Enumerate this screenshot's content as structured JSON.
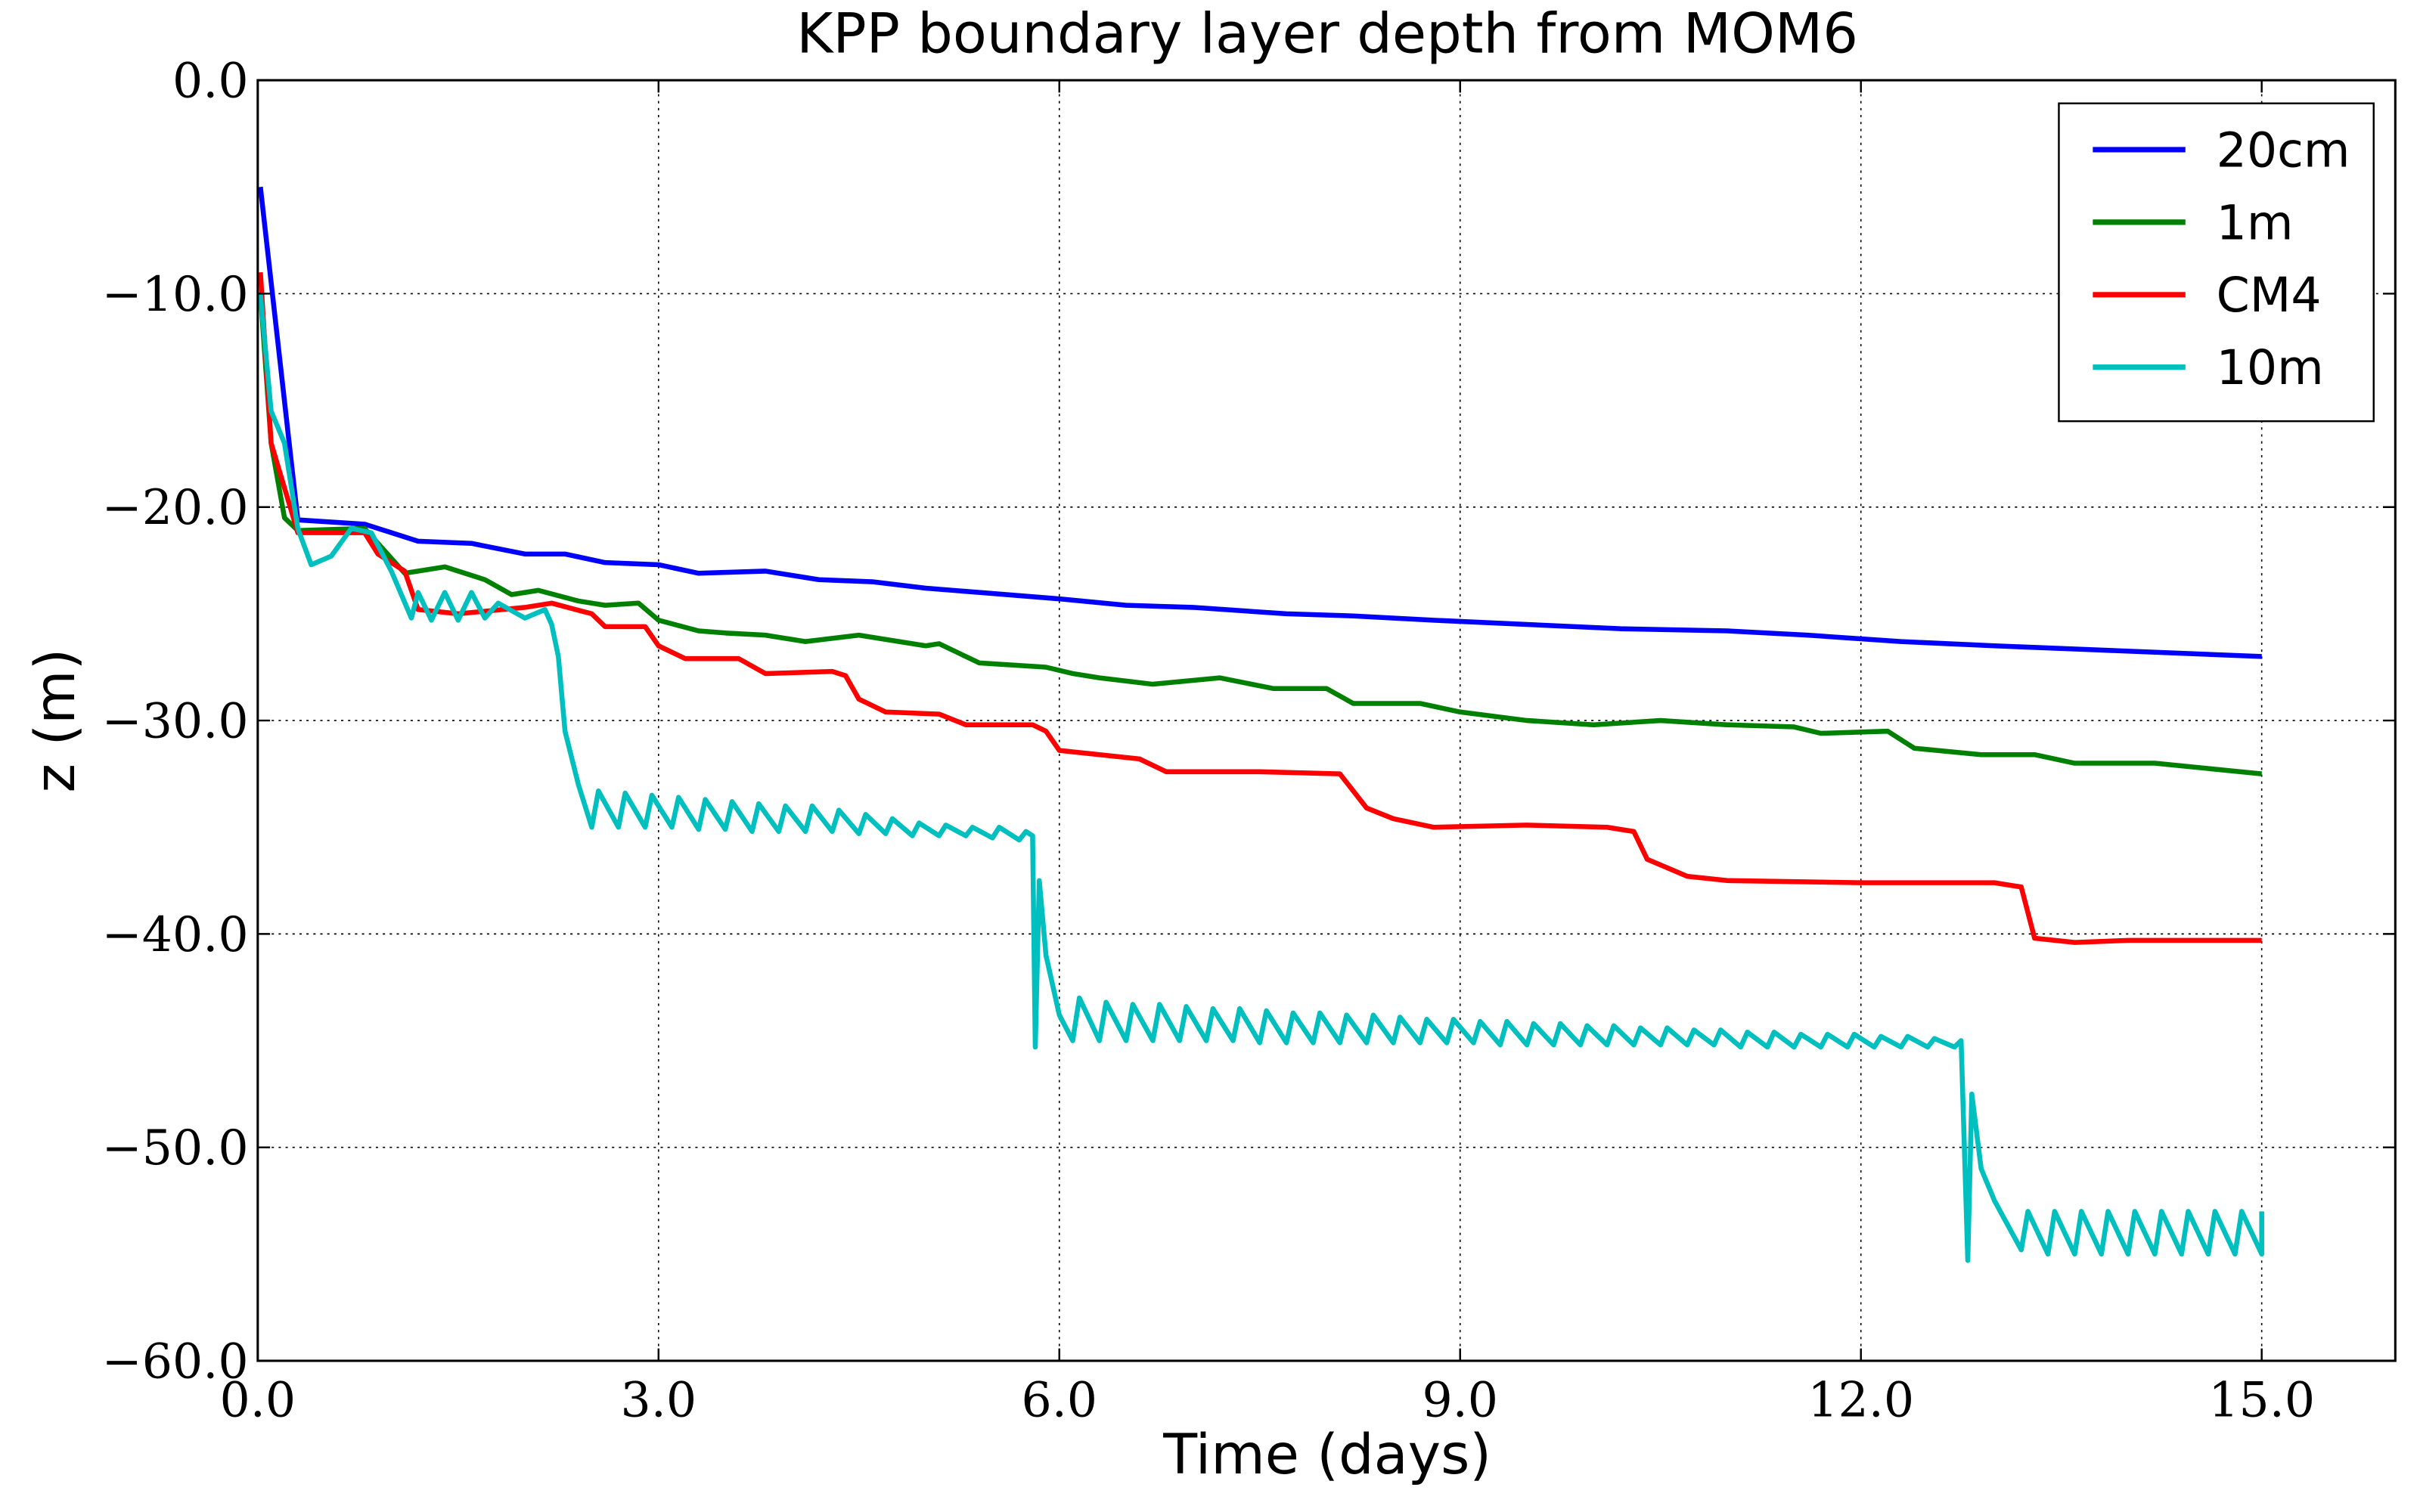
{
  "chart_data": {
    "type": "line",
    "title": "KPP boundary layer depth from MOM6",
    "x_label": "Time (days)",
    "y_label": "z (m)",
    "xlim": [
      0,
      16
    ],
    "ylim": [
      -60,
      0
    ],
    "xticks": [
      {
        "value": 0,
        "label": "0.0"
      },
      {
        "value": 3,
        "label": "3.0"
      },
      {
        "value": 6,
        "label": "6.0"
      },
      {
        "value": 9,
        "label": "9.0"
      },
      {
        "value": 12,
        "label": "12.0"
      },
      {
        "value": 15,
        "label": "15.0"
      }
    ],
    "yticks": [
      {
        "value": -60,
        "label": "−60.0"
      },
      {
        "value": -50,
        "label": "−50.0"
      },
      {
        "value": -40,
        "label": "−40.0"
      },
      {
        "value": -30,
        "label": "−30.0"
      },
      {
        "value": -20,
        "label": "−20.0"
      },
      {
        "value": -10,
        "label": "−10.0"
      },
      {
        "value": 0,
        "label": "0.0"
      }
    ],
    "grid": true,
    "legend": "upper right",
    "series": [
      {
        "name": "20cm",
        "color": "#0000ff",
        "x": [
          0.02,
          0.3,
          0.8,
          1.2,
          1.6,
          2.0,
          2.3,
          2.6,
          3.0,
          3.3,
          3.8,
          4.2,
          4.6,
          5.0,
          5.4,
          6.0,
          6.5,
          7.0,
          7.7,
          8.2,
          8.8,
          9.5,
          10.2,
          11.0,
          11.6,
          12.3,
          13.0,
          13.8,
          15.0
        ],
        "values": [
          -5,
          -20.6,
          -20.8,
          -21.6,
          -21.7,
          -22.2,
          -22.2,
          -22.6,
          -22.7,
          -23.1,
          -23.0,
          -23.4,
          -23.5,
          -23.8,
          -24.0,
          -24.3,
          -24.6,
          -24.7,
          -25.0,
          -25.1,
          -25.3,
          -25.5,
          -25.7,
          -25.8,
          -26.0,
          -26.3,
          -26.5,
          -26.7,
          -27.0
        ]
      },
      {
        "name": "1m",
        "color": "#008000",
        "x": [
          0.02,
          0.1,
          0.2,
          0.3,
          0.8,
          1.1,
          1.4,
          1.7,
          1.9,
          2.1,
          2.4,
          2.6,
          2.85,
          3.0,
          3.3,
          3.5,
          3.8,
          4.1,
          4.5,
          5.0,
          5.1,
          5.4,
          5.9,
          6.1,
          6.3,
          6.7,
          7.2,
          7.6,
          8.0,
          8.2,
          8.7,
          9.0,
          9.5,
          10.0,
          10.5,
          11.0,
          11.5,
          11.7,
          12.2,
          12.4,
          12.9,
          13.3,
          13.6,
          14.2,
          15.0
        ],
        "values": [
          -10,
          -17,
          -20.5,
          -21.1,
          -21.0,
          -23.1,
          -22.8,
          -23.4,
          -24.1,
          -23.9,
          -24.4,
          -24.6,
          -24.5,
          -25.3,
          -25.8,
          -25.9,
          -26.0,
          -26.3,
          -26.0,
          -26.5,
          -26.4,
          -27.3,
          -27.5,
          -27.8,
          -28.0,
          -28.3,
          -28.0,
          -28.5,
          -28.5,
          -29.2,
          -29.2,
          -29.6,
          -30.0,
          -30.2,
          -30.0,
          -30.2,
          -30.3,
          -30.6,
          -30.5,
          -31.3,
          -31.6,
          -31.6,
          -32.0,
          -32.0,
          -32.5
        ]
      },
      {
        "name": "CM4",
        "color": "#ff0000",
        "x": [
          0.02,
          0.1,
          0.3,
          0.8,
          0.9,
          1.1,
          1.2,
          1.5,
          2.0,
          2.2,
          2.5,
          2.6,
          2.9,
          3.0,
          3.2,
          3.6,
          3.8,
          4.3,
          4.4,
          4.5,
          4.7,
          5.1,
          5.3,
          5.8,
          5.9,
          6.0,
          6.3,
          6.6,
          6.8,
          7.5,
          8.1,
          8.3,
          8.5,
          8.8,
          9.5,
          10.1,
          10.3,
          10.4,
          10.7,
          11.0,
          12.0,
          13.0,
          13.2,
          13.3,
          13.6,
          14.0,
          15.0
        ],
        "values": [
          -9,
          -17,
          -21.2,
          -21.2,
          -22.2,
          -23.0,
          -24.8,
          -25.0,
          -24.7,
          -24.5,
          -25.0,
          -25.6,
          -25.6,
          -26.5,
          -27.1,
          -27.1,
          -27.8,
          -27.7,
          -27.9,
          -29.0,
          -29.6,
          -29.7,
          -30.2,
          -30.2,
          -30.5,
          -31.4,
          -31.6,
          -31.8,
          -32.4,
          -32.4,
          -32.5,
          -34.1,
          -34.6,
          -35.0,
          -34.9,
          -35.0,
          -35.2,
          -36.5,
          -37.3,
          -37.5,
          -37.6,
          -37.6,
          -37.8,
          -40.2,
          -40.4,
          -40.3,
          -40.3
        ]
      },
      {
        "name": "10m",
        "color": "#00bfbf",
        "x": [
          0.02,
          0.1,
          0.2,
          0.3,
          0.4,
          0.55,
          0.7,
          0.85,
          1.0,
          1.15,
          1.2,
          1.3,
          1.4,
          1.5,
          1.6,
          1.7,
          1.8,
          2.0,
          2.15,
          2.2,
          2.25,
          2.3,
          2.4,
          2.5,
          2.55,
          2.7,
          2.75,
          2.9,
          2.95,
          3.1,
          3.15,
          3.3,
          3.35,
          3.5,
          3.55,
          3.7,
          3.75,
          3.9,
          3.95,
          4.1,
          4.15,
          4.3,
          4.35,
          4.5,
          4.55,
          4.7,
          4.75,
          4.9,
          4.95,
          5.1,
          5.15,
          5.3,
          5.35,
          5.5,
          5.55,
          5.7,
          5.75,
          5.8,
          5.82,
          5.85,
          5.9,
          6.0,
          6.1,
          6.15,
          6.3,
          6.35,
          6.5,
          6.55,
          6.7,
          6.75,
          6.9,
          6.95,
          7.1,
          7.15,
          7.3,
          7.35,
          7.5,
          7.55,
          7.7,
          7.75,
          7.9,
          7.95,
          8.1,
          8.15,
          8.3,
          8.35,
          8.5,
          8.55,
          8.7,
          8.75,
          8.9,
          8.95,
          9.1,
          9.15,
          9.3,
          9.35,
          9.5,
          9.55,
          9.7,
          9.75,
          9.9,
          9.95,
          10.1,
          10.15,
          10.3,
          10.35,
          10.5,
          10.55,
          10.7,
          10.75,
          10.9,
          10.95,
          11.1,
          11.15,
          11.3,
          11.35,
          11.5,
          11.55,
          11.7,
          11.75,
          11.9,
          11.95,
          12.1,
          12.15,
          12.3,
          12.35,
          12.5,
          12.55,
          12.7,
          12.75,
          12.8,
          12.83,
          12.9,
          13.0,
          13.2,
          13.25,
          13.4,
          13.45,
          13.6,
          13.65,
          13.8,
          13.85,
          14.0,
          14.05,
          14.2,
          14.25,
          14.4,
          14.45,
          14.6,
          14.65,
          14.8,
          14.85,
          15.0,
          15.0
        ],
        "values": [
          -10,
          -15.5,
          -17,
          -21,
          -22.7,
          -22.3,
          -21,
          -21.2,
          -23,
          -25.2,
          -24,
          -25.3,
          -24,
          -25.3,
          -24,
          -25.2,
          -24.5,
          -25.2,
          -24.8,
          -25.5,
          -27,
          -30.5,
          -33,
          -35.0,
          -33.3,
          -35.0,
          -33.4,
          -35.0,
          -33.5,
          -35.0,
          -33.6,
          -35.1,
          -33.7,
          -35.1,
          -33.8,
          -35.2,
          -33.9,
          -35.2,
          -34.0,
          -35.2,
          -34.0,
          -35.2,
          -34.2,
          -35.3,
          -34.4,
          -35.3,
          -34.6,
          -35.4,
          -34.8,
          -35.4,
          -34.9,
          -35.4,
          -35.0,
          -35.5,
          -35.0,
          -35.6,
          -35.2,
          -35.4,
          -45.3,
          -37.5,
          -41.0,
          -43.8,
          -45.0,
          -43.0,
          -45.0,
          -43.2,
          -45.0,
          -43.3,
          -45.0,
          -43.3,
          -45.0,
          -43.4,
          -45.0,
          -43.5,
          -45.0,
          -43.5,
          -45.1,
          -43.6,
          -45.1,
          -43.7,
          -45.1,
          -43.7,
          -45.1,
          -43.8,
          -45.1,
          -43.8,
          -45.1,
          -43.9,
          -45.1,
          -44.0,
          -45.1,
          -44.0,
          -45.1,
          -44.1,
          -45.2,
          -44.1,
          -45.2,
          -44.2,
          -45.2,
          -44.2,
          -45.2,
          -44.3,
          -45.2,
          -44.3,
          -45.2,
          -44.4,
          -45.2,
          -44.4,
          -45.2,
          -44.5,
          -45.2,
          -44.5,
          -45.3,
          -44.6,
          -45.3,
          -44.6,
          -45.3,
          -44.7,
          -45.3,
          -44.7,
          -45.3,
          -44.7,
          -45.3,
          -44.8,
          -45.3,
          -44.8,
          -45.3,
          -44.9,
          -45.3,
          -45.0,
          -55.3,
          -47.5,
          -51.0,
          -52.5,
          -54.8,
          -53.0,
          -55.0,
          -53.0,
          -55.0,
          -53.0,
          -55.0,
          -53.0,
          -55.0,
          -53.0,
          -55.0,
          -53.0,
          -55.0,
          -53.0,
          -55.0,
          -53.0,
          -55.0,
          -53.0,
          -55.0,
          -53.0
        ]
      }
    ]
  }
}
